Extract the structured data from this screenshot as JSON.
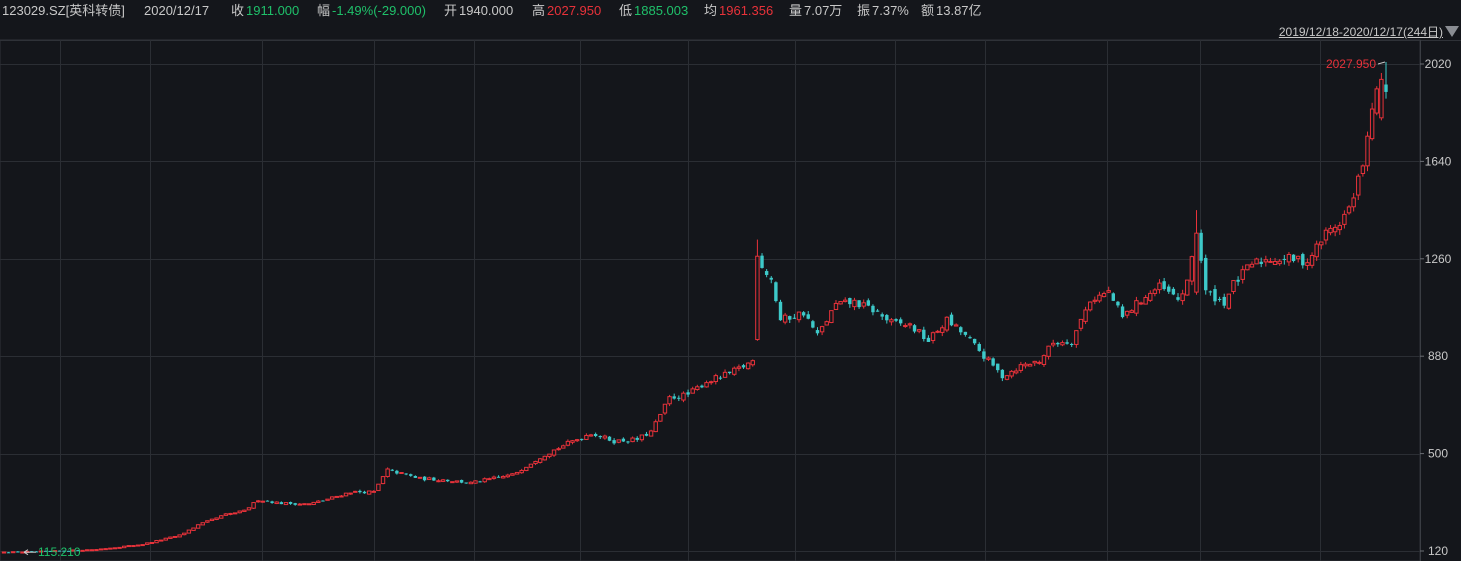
{
  "header": {
    "code": "123029.SZ[英科转债]",
    "date": "2020/12/17",
    "close_label": "收",
    "close": "1911.000",
    "change_label": "幅",
    "change": "-1.49%(-29.000)",
    "open_label": "开",
    "open": "1940.000",
    "high_label": "高",
    "high": "2027.950",
    "low_label": "低",
    "low": "1885.003",
    "avg_label": "均",
    "avg": "1961.356",
    "volume_label": "量",
    "volume": "7.07万",
    "amplitude_label": "振",
    "amplitude": "7.37%",
    "amount_label": "额",
    "amount": "13.87亿"
  },
  "period": {
    "label": "2019/12/18-2020/12/17(244日)"
  },
  "colors": {
    "up": "#e8323a",
    "down": "#3dc9c9",
    "background": "#14161b",
    "grid": "#2b2e34"
  },
  "chart_data": {
    "type": "candlestick",
    "yaxis": {
      "ticks": [
        120,
        500,
        880,
        1260,
        1640,
        2020
      ],
      "range": [
        120,
        2020
      ]
    },
    "annotations": {
      "max": "2027.950",
      "min": "115.210"
    },
    "anchors": [
      [
        0,
        115
      ],
      [
        10,
        119
      ],
      [
        20,
        126
      ],
      [
        30,
        146
      ],
      [
        38,
        181
      ],
      [
        42,
        221
      ],
      [
        48,
        262
      ],
      [
        52,
        276
      ],
      [
        55,
        320
      ],
      [
        60,
        306
      ],
      [
        66,
        303
      ],
      [
        70,
        322
      ],
      [
        75,
        350
      ],
      [
        80,
        350
      ],
      [
        83,
        436
      ],
      [
        90,
        402
      ],
      [
        95,
        398
      ],
      [
        101,
        385
      ],
      [
        105,
        400
      ],
      [
        110,
        417
      ],
      [
        116,
        487
      ],
      [
        122,
        540
      ],
      [
        127,
        580
      ],
      [
        132,
        548
      ],
      [
        137,
        555
      ],
      [
        140,
        585
      ],
      [
        144,
        717
      ],
      [
        148,
        730
      ],
      [
        152,
        781
      ],
      [
        157,
        812
      ],
      [
        160,
        840
      ],
      [
        162,
        862
      ],
      [
        163,
        1260
      ],
      [
        166,
        1180
      ],
      [
        168,
        1020
      ],
      [
        173,
        1050
      ],
      [
        176,
        960
      ],
      [
        180,
        1080
      ],
      [
        184,
        1090
      ],
      [
        188,
        1060
      ],
      [
        192,
        1010
      ],
      [
        196,
        1000
      ],
      [
        200,
        940
      ],
      [
        204,
        1020
      ],
      [
        208,
        960
      ],
      [
        212,
        880
      ],
      [
        216,
        802
      ],
      [
        220,
        842
      ],
      [
        224,
        862
      ],
      [
        227,
        932
      ],
      [
        231,
        940
      ],
      [
        235,
        1100
      ],
      [
        239,
        1130
      ],
      [
        242,
        1030
      ],
      [
        246,
        1100
      ],
      [
        250,
        1150
      ],
      [
        254,
        1100
      ],
      [
        256,
        1160
      ],
      [
        258,
        1380
      ],
      [
        260,
        1130
      ],
      [
        264,
        1090
      ],
      [
        266,
        1160
      ],
      [
        270,
        1240
      ],
      [
        274,
        1260
      ],
      [
        278,
        1260
      ],
      [
        282,
        1250
      ],
      [
        286,
        1360
      ],
      [
        289,
        1400
      ],
      [
        292,
        1490
      ],
      [
        295,
        1720
      ],
      [
        297,
        1938
      ],
      [
        299,
        1911
      ]
    ]
  }
}
